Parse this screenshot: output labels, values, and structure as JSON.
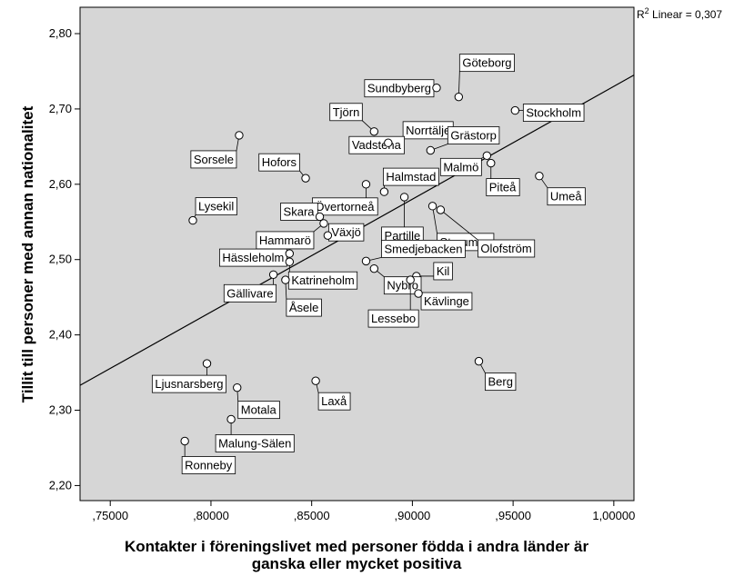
{
  "chart_data": {
    "type": "scatter",
    "xlabel_lines": [
      "Kontakter i föreningslivet med personer födda i andra länder är",
      "ganska eller mycket positiva"
    ],
    "ylabel": "Tillit till personer med annan nationalitet",
    "xlim": [
      0.735,
      1.01
    ],
    "ylim": [
      2.18,
      2.835
    ],
    "x_ticks": [
      0.75,
      0.8,
      0.85,
      0.9,
      0.95,
      1.0
    ],
    "x_tick_labels": [
      ",75000",
      ",80000",
      ",85000",
      ",90000",
      ",95000",
      "1,00000"
    ],
    "y_ticks": [
      2.2,
      2.3,
      2.4,
      2.5,
      2.6,
      2.7,
      2.8
    ],
    "y_tick_labels": [
      "2,20",
      "2,30",
      "2,40",
      "2,50",
      "2,60",
      "2,70",
      "2,80"
    ],
    "fit_line": {
      "label_prefix": "R",
      "label_sup": "2",
      "label_suffix": " Linear = 0,307",
      "x": [
        0.735,
        1.01
      ],
      "y": [
        2.333,
        2.745
      ]
    },
    "colors": {
      "plot_background": "#d6d6d6",
      "line": "#000000",
      "point_fill": "#ffffff"
    },
    "points": [
      {
        "name": "Sundbyberg",
        "x": 0.912,
        "y": 2.728,
        "label_anchor": "end",
        "dx": -6,
        "dy": 0
      },
      {
        "name": "Göteborg",
        "x": 0.923,
        "y": 2.716,
        "label_anchor": "start",
        "dx": 4,
        "dy": -38
      },
      {
        "name": "Stockholm",
        "x": 0.951,
        "y": 2.698,
        "label_anchor": "start",
        "dx": 12,
        "dy": 2
      },
      {
        "name": "Tjörn",
        "x": 0.881,
        "y": 2.67,
        "label_anchor": "end",
        "dx": -16,
        "dy": -22
      },
      {
        "name": "Sorsele",
        "x": 0.814,
        "y": 2.665,
        "label_anchor": "end",
        "dx": -6,
        "dy": 26
      },
      {
        "name": "Norrtälje",
        "x": 0.894,
        "y": 2.647,
        "label_anchor": "start",
        "dx": 6,
        "dy": -21
      },
      {
        "name": "Grästorp",
        "x": 0.909,
        "y": 2.645,
        "label_anchor": "start",
        "dx": 22,
        "dy": -17
      },
      {
        "name": "Vadstena",
        "x": 0.888,
        "y": 2.655,
        "label_anchor": "end",
        "dx": 14,
        "dy": 2
      },
      {
        "name": "Malmö",
        "x": 0.937,
        "y": 2.638,
        "label_anchor": "end",
        "dx": -9,
        "dy": 12
      },
      {
        "name": "Piteå",
        "x": 0.939,
        "y": 2.628,
        "label_anchor": "start",
        "dx": -2,
        "dy": 26
      },
      {
        "name": "Hofors",
        "x": 0.847,
        "y": 2.608,
        "label_anchor": "end",
        "dx": -10,
        "dy": -18
      },
      {
        "name": "Umeå",
        "x": 0.963,
        "y": 2.611,
        "label_anchor": "start",
        "dx": 12,
        "dy": 22
      },
      {
        "name": "Halmstad",
        "x": 0.886,
        "y": 2.59,
        "label_anchor": "start",
        "dx": 2,
        "dy": -17
      },
      {
        "name": "Övertorneå",
        "x": 0.877,
        "y": 2.6,
        "label_anchor": "end",
        "dx": 9,
        "dy": 24
      },
      {
        "name": "Partille",
        "x": 0.896,
        "y": 2.583,
        "label_anchor": "start",
        "dx": -22,
        "dy": 42
      },
      {
        "name": "Lysekil",
        "x": 0.791,
        "y": 2.552,
        "label_anchor": "start",
        "dx": 6,
        "dy": -16
      },
      {
        "name": "Skara",
        "x": 0.854,
        "y": 2.557,
        "label_anchor": "end",
        "dx": -6,
        "dy": -6
      },
      {
        "name": "Storuman",
        "x": 0.91,
        "y": 2.571,
        "label_anchor": "start",
        "dx": 8,
        "dy": 39
      },
      {
        "name": "Växjö",
        "x": 0.858,
        "y": 2.532,
        "label_anchor": "start",
        "dx": 4,
        "dy": -4
      },
      {
        "name": "Hammarö",
        "x": 0.856,
        "y": 2.548,
        "label_anchor": "end",
        "dx": -14,
        "dy": 18
      },
      {
        "name": "Olofström",
        "x": 0.914,
        "y": 2.566,
        "label_anchor": "start",
        "dx": 44,
        "dy": 42
      },
      {
        "name": "Smedjebacken",
        "x": 0.877,
        "y": 2.498,
        "label_anchor": "start",
        "dx": 20,
        "dy": -14
      },
      {
        "name": "Hässleholm",
        "x": 0.839,
        "y": 2.508,
        "label_anchor": "end",
        "dx": -6,
        "dy": 4
      },
      {
        "name": "Kil",
        "x": 0.902,
        "y": 2.478,
        "label_anchor": "start",
        "dx": 22,
        "dy": -6
      },
      {
        "name": "Nybro",
        "x": 0.881,
        "y": 2.488,
        "label_anchor": "start",
        "dx": 14,
        "dy": 18
      },
      {
        "name": "Katrineholm",
        "x": 0.839,
        "y": 2.497,
        "label_anchor": "start",
        "dx": 2,
        "dy": 20
      },
      {
        "name": "Gällivare",
        "x": 0.831,
        "y": 2.48,
        "label_anchor": "end",
        "dx": 0,
        "dy": 20
      },
      {
        "name": "Kävlinge",
        "x": 0.903,
        "y": 2.455,
        "label_anchor": "start",
        "dx": 6,
        "dy": 8
      },
      {
        "name": "Åsele",
        "x": 0.837,
        "y": 2.473,
        "label_anchor": "start",
        "dx": 4,
        "dy": 30
      },
      {
        "name": "Lessebo",
        "x": 0.899,
        "y": 2.473,
        "label_anchor": "end",
        "dx": 6,
        "dy": 42
      },
      {
        "name": "Ljusnarsberg",
        "x": 0.798,
        "y": 2.362,
        "label_anchor": "end",
        "dx": 18,
        "dy": 22
      },
      {
        "name": "Berg",
        "x": 0.933,
        "y": 2.365,
        "label_anchor": "start",
        "dx": 10,
        "dy": 22
      },
      {
        "name": "Laxå",
        "x": 0.852,
        "y": 2.339,
        "label_anchor": "start",
        "dx": 6,
        "dy": 22
      },
      {
        "name": "Motala",
        "x": 0.813,
        "y": 2.33,
        "label_anchor": "start",
        "dx": 4,
        "dy": 24
      },
      {
        "name": "Malung-Sälen",
        "x": 0.81,
        "y": 2.288,
        "label_anchor": "start",
        "dx": -14,
        "dy": 26
      },
      {
        "name": "Ronneby",
        "x": 0.787,
        "y": 2.259,
        "label_anchor": "start",
        "dx": 0,
        "dy": 26
      }
    ]
  }
}
